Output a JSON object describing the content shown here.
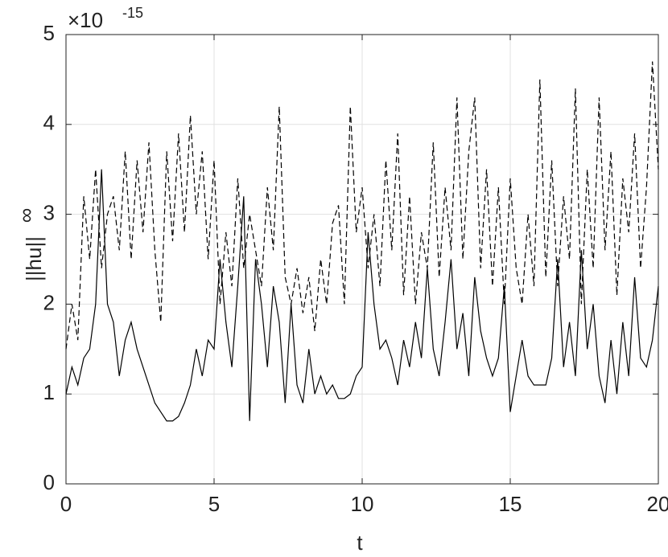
{
  "chart_data": {
    "type": "line",
    "xlabel": "t",
    "ylabel": "||hu||",
    "ylabel_subscript": "∞",
    "y_multiplier": "×10",
    "y_multiplier_exponent": "-15",
    "xlim": [
      0,
      20
    ],
    "ylim": [
      0,
      5
    ],
    "xticks": [
      0,
      5,
      10,
      15,
      20
    ],
    "yticks": [
      0,
      1,
      2,
      3,
      4,
      5
    ],
    "grid": true,
    "x": [
      0,
      0.2,
      0.4,
      0.6,
      0.8,
      1.0,
      1.2,
      1.4,
      1.6,
      1.8,
      2.0,
      2.2,
      2.4,
      2.6,
      2.8,
      3.0,
      3.2,
      3.4,
      3.6,
      3.8,
      4.0,
      4.2,
      4.4,
      4.6,
      4.8,
      5.0,
      5.2,
      5.4,
      5.6,
      5.8,
      6.0,
      6.2,
      6.4,
      6.6,
      6.8,
      7.0,
      7.2,
      7.4,
      7.6,
      7.8,
      8.0,
      8.2,
      8.4,
      8.6,
      8.8,
      9.0,
      9.2,
      9.4,
      9.6,
      9.8,
      10.0,
      10.2,
      10.4,
      10.6,
      10.8,
      11.0,
      11.2,
      11.4,
      11.6,
      11.8,
      12.0,
      12.2,
      12.4,
      12.6,
      12.8,
      13.0,
      13.2,
      13.4,
      13.6,
      13.8,
      14.0,
      14.2,
      14.4,
      14.6,
      14.8,
      15.0,
      15.2,
      15.4,
      15.6,
      15.8,
      16.0,
      16.2,
      16.4,
      16.6,
      16.8,
      17.0,
      17.2,
      17.4,
      17.6,
      17.8,
      18.0,
      18.2,
      18.4,
      18.6,
      18.8,
      19.0,
      19.2,
      19.4,
      19.6,
      19.8,
      20.0
    ],
    "series": [
      {
        "color": "#000000",
        "line_style": "solid",
        "values": [
          1.0,
          1.3,
          1.1,
          1.4,
          1.5,
          2.0,
          3.5,
          2.0,
          1.8,
          1.2,
          1.6,
          1.8,
          1.5,
          1.3,
          1.1,
          0.9,
          0.8,
          0.7,
          0.7,
          0.75,
          0.9,
          1.1,
          1.5,
          1.2,
          1.6,
          1.5,
          2.5,
          1.8,
          1.3,
          2.2,
          3.2,
          0.7,
          2.5,
          2.0,
          1.3,
          2.2,
          1.8,
          0.9,
          2.0,
          1.1,
          0.9,
          1.5,
          1.0,
          1.2,
          1.0,
          1.1,
          0.95,
          0.95,
          1.0,
          1.2,
          1.3,
          2.8,
          2.0,
          1.5,
          1.6,
          1.4,
          1.1,
          1.6,
          1.3,
          1.8,
          1.4,
          2.4,
          1.5,
          1.2,
          1.8,
          2.5,
          1.5,
          1.9,
          1.2,
          2.3,
          1.7,
          1.4,
          1.2,
          1.4,
          2.2,
          0.8,
          1.2,
          1.6,
          1.2,
          1.1,
          1.1,
          1.1,
          1.4,
          2.5,
          1.3,
          1.8,
          1.2,
          2.6,
          1.5,
          2.0,
          1.2,
          0.9,
          1.6,
          1.0,
          1.8,
          1.2,
          2.3,
          1.4,
          1.3,
          1.6,
          2.2
        ]
      },
      {
        "color": "#000000",
        "line_style": "dashed",
        "values": [
          1.5,
          2.0,
          1.6,
          3.2,
          2.5,
          3.5,
          2.4,
          3.0,
          3.2,
          2.6,
          3.7,
          2.5,
          3.6,
          2.8,
          3.8,
          2.6,
          1.8,
          3.7,
          2.7,
          3.9,
          2.8,
          4.1,
          3.0,
          3.7,
          2.5,
          3.6,
          2.0,
          2.8,
          2.2,
          3.4,
          2.4,
          3.0,
          2.6,
          2.2,
          3.3,
          2.6,
          4.2,
          2.3,
          2.0,
          2.4,
          1.9,
          2.3,
          1.7,
          2.5,
          2.0,
          2.9,
          3.1,
          2.0,
          4.2,
          2.8,
          3.3,
          2.4,
          3.0,
          2.2,
          3.6,
          2.6,
          3.9,
          2.1,
          3.2,
          2.0,
          2.8,
          2.4,
          3.8,
          2.3,
          3.3,
          2.6,
          4.3,
          2.5,
          3.7,
          4.3,
          2.4,
          3.5,
          2.2,
          3.3,
          2.0,
          3.4,
          2.4,
          2.0,
          3.0,
          2.2,
          4.5,
          2.3,
          3.6,
          2.2,
          3.2,
          2.5,
          4.4,
          2.0,
          3.5,
          2.4,
          4.3,
          2.6,
          3.7,
          2.1,
          3.4,
          2.8,
          3.9,
          2.4,
          3.3,
          4.7,
          3.5
        ]
      }
    ]
  }
}
